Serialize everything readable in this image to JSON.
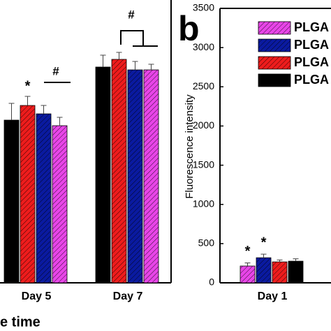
{
  "chart_data": [
    {
      "type": "bar",
      "x_label": "e time",
      "categories": [
        "Day 5",
        "Day 7"
      ],
      "ylim": [
        0,
        3500
      ],
      "series": [
        {
          "color": "#000000",
          "hatch": false,
          "values": [
            2075,
            2752
          ],
          "errors": [
            214,
            151
          ]
        },
        {
          "color": "#ee1c1c",
          "hatch": true,
          "values": [
            2262,
            2850
          ],
          "errors": [
            116,
            89
          ]
        },
        {
          "color": "#0a1aa0",
          "hatch": true,
          "values": [
            2155,
            2716
          ],
          "errors": [
            107,
            107
          ]
        },
        {
          "color": "#e845e8",
          "hatch": true,
          "values": [
            2004,
            2716
          ],
          "errors": [
            107,
            71
          ]
        }
      ],
      "annotations": [
        "*",
        "#",
        "#"
      ]
    },
    {
      "type": "bar",
      "panel_label": "b",
      "y_label": "Fluorescence intensity",
      "categories": [
        "Day 1"
      ],
      "ylim": [
        0,
        3500
      ],
      "yticks": [
        0,
        500,
        1000,
        1500,
        2000,
        2500,
        3000,
        3500
      ],
      "series": [
        {
          "name": "PLGA",
          "color": "#e845e8",
          "hatch": true,
          "values": [
            214
          ],
          "errors": [
            40
          ]
        },
        {
          "name": "PLGA",
          "color": "#0a1aa0",
          "hatch": true,
          "values": [
            320
          ],
          "errors": [
            45
          ]
        },
        {
          "name": "PLGA",
          "color": "#ee1c1c",
          "hatch": true,
          "values": [
            267
          ],
          "errors": [
            25
          ]
        },
        {
          "name": "PLGA",
          "color": "#000000",
          "hatch": false,
          "values": [
            276
          ],
          "errors": [
            30
          ]
        }
      ],
      "annotations": [
        "*",
        "*"
      ]
    }
  ]
}
